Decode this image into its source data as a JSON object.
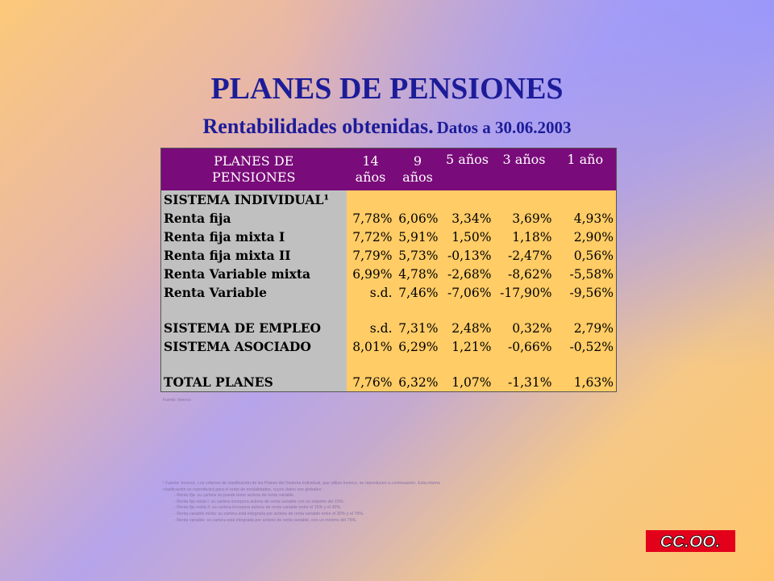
{
  "slide": {
    "title": "PLANES DE PENSIONES",
    "subtitle_main": "Rentabilidades obtenidas.",
    "subtitle_date": "Datos a 30.06.2003"
  },
  "table": {
    "headers": [
      "PLANES DE PENSIONES",
      "14 años",
      "9 años",
      "5 años",
      "3 años",
      "1 año"
    ],
    "rows": [
      {
        "label": "SISTEMA INDIVIDUAL¹",
        "values": [
          "",
          "",
          "",
          "",
          ""
        ]
      },
      {
        "label": "Renta fija",
        "values": [
          "7,78%",
          "6,06%",
          "3,34%",
          "3,69%",
          "4,93%"
        ]
      },
      {
        "label": "Renta fija mixta I",
        "values": [
          "7,72%",
          "5,91%",
          "1,50%",
          "1,18%",
          "2,90%"
        ]
      },
      {
        "label": "Renta fija mixta II",
        "values": [
          "7,79%",
          "5,73%",
          "-0,13%",
          "-2,47%",
          "0,56%"
        ]
      },
      {
        "label": "Renta Variable mixta",
        "values": [
          "6,99%",
          "4,78%",
          "-2,68%",
          "-8,62%",
          "-5,58%"
        ]
      },
      {
        "label": "Renta Variable",
        "values": [
          "s.d.",
          "7,46%",
          "-7,06%",
          "-17,90%",
          "-9,56%"
        ]
      },
      {
        "label": "",
        "values": [
          "",
          "",
          "",
          "",
          ""
        ]
      },
      {
        "label": "SISTEMA DE EMPLEO",
        "values": [
          "s.d.",
          "7,31%",
          "2,48%",
          "0,32%",
          "2,79%"
        ]
      },
      {
        "label": "SISTEMA ASOCIADO",
        "values": [
          "8,01%",
          "6,29%",
          "1,21%",
          "-0,66%",
          "-0,52%"
        ]
      },
      {
        "label": "",
        "values": [
          "",
          "",
          "",
          "",
          ""
        ]
      },
      {
        "label": "TOTAL PLANES",
        "values": [
          "7,76%",
          "6,32%",
          "1,07%",
          "-1,31%",
          "1,63%"
        ]
      }
    ]
  },
  "source_note": "Fuente: Inverco",
  "footnote": {
    "lines": [
      "¹ Fuente: Inverco. Los criterios de clasificación de los Planes del Sistema Individual, que utiliza Inverco, se reproducen a continuación. Esta misma",
      "clasificación se reproducirá para el resto de modalidades, cuyos datos son globales:",
      "- Renta fija: su cartera no puede tener activos de renta variable.",
      "- Renta fija mixta I: su cartera incorpora activos de renta variable con un máximo del 15%.",
      "- Renta fija mixta II: su cartera incorpora activos de renta variable entre el 15% y el 30%.",
      "- Renta variable mixta: su cartera está integrada por activos de renta variable entre el 30% y el 75%.",
      "- Renta variable: su cartera está integrada por activos de renta variable, con un mínimo del 75%."
    ]
  },
  "logo": {
    "text": "CC.OO.",
    "color": "#e3001b"
  }
}
